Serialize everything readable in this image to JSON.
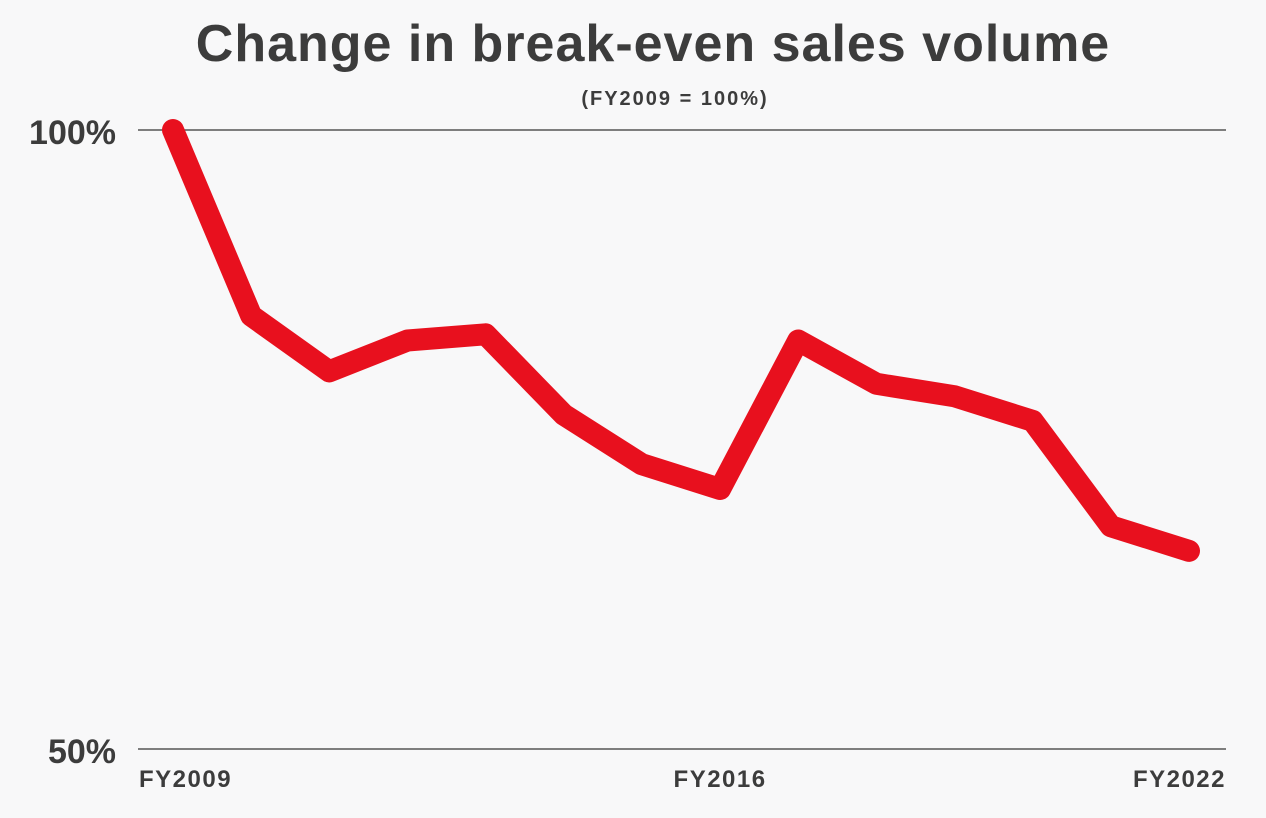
{
  "chart_data": {
    "type": "line",
    "title": "Change in break-even sales volume",
    "subtitle": "(FY2009 = 100%)",
    "ylim": [
      50,
      100
    ],
    "y_ticks": [
      "100%",
      "50%"
    ],
    "y_tick_values": [
      100,
      50
    ],
    "x_ticks": [
      "FY2009",
      "FY2016",
      "FY2022"
    ],
    "x_tick_values": [
      2009,
      2016,
      2022
    ],
    "grid": true,
    "line_color": "#e8101e",
    "series": [
      {
        "x": [
          2009,
          2010,
          2011,
          2012,
          2013,
          2014,
          2015,
          2016,
          2017,
          2018,
          2019,
          2020,
          2021,
          2022
        ],
        "values": [
          100,
          85,
          80.5,
          83,
          83.5,
          77,
          73,
          71,
          83,
          79.5,
          78.5,
          76.5,
          68,
          66
        ]
      }
    ]
  }
}
